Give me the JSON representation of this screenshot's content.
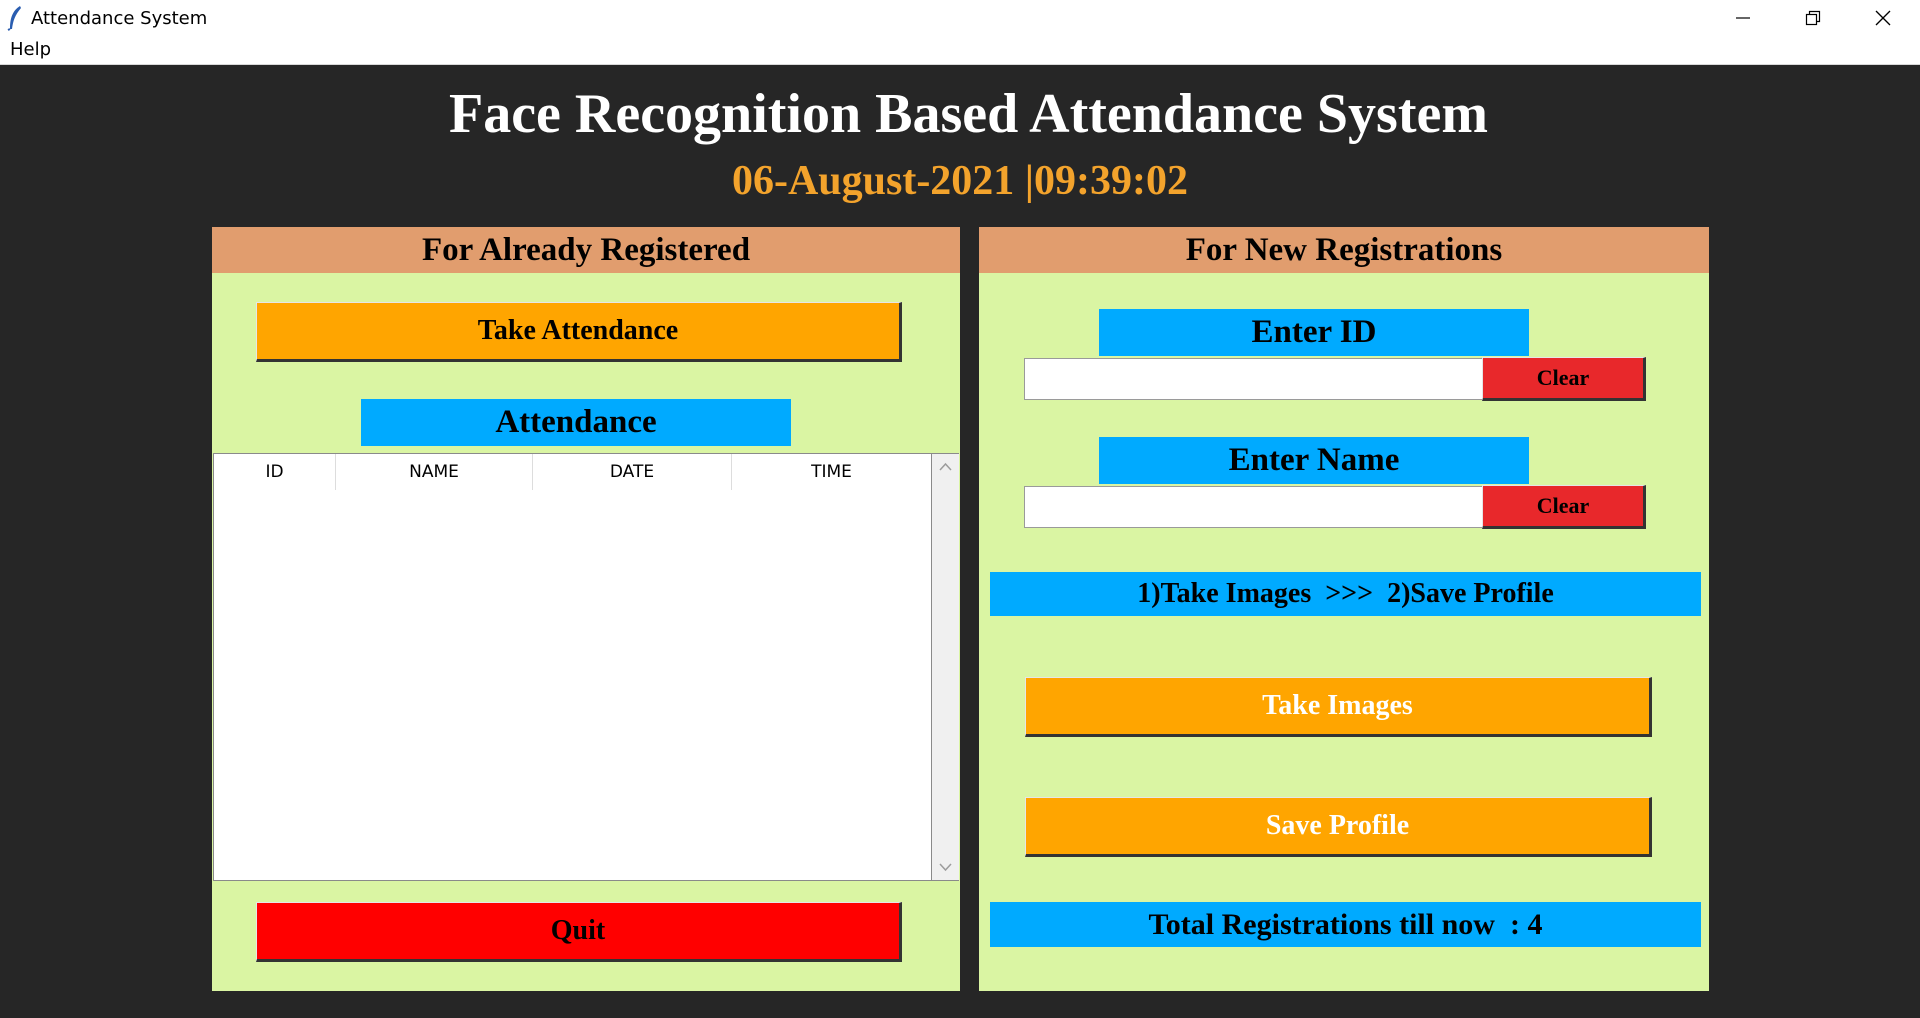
{
  "window": {
    "title": "Attendance System"
  },
  "menu": {
    "help": "Help"
  },
  "header": {
    "title": "Face Recognition Based Attendance System",
    "datetime": "06-August-2021  |09:39:02"
  },
  "left_panel": {
    "heading": "For Already Registered",
    "take_attendance_label": "Take Attendance",
    "attendance_label": "Attendance",
    "columns": [
      "ID",
      "NAME",
      "DATE",
      "TIME"
    ],
    "rows": [],
    "quit_label": "Quit"
  },
  "right_panel": {
    "heading": "For New Registrations",
    "enter_id_label": "Enter ID",
    "id_value": "",
    "clear_id_label": "Clear",
    "enter_name_label": "Enter Name",
    "name_value": "",
    "clear_name_label": "Clear",
    "steps_text": "1)Take Images  >>>  2)Save Profile",
    "take_images_label": "Take Images",
    "save_profile_label": "Save Profile",
    "total_registrations_text": "Total Registrations till now  : 4"
  },
  "colors": {
    "background": "#262626",
    "panel_bg": "#daf5a3",
    "panel_header": "#e19d6e",
    "label_blue": "#00aaff",
    "button_orange": "#ffa500",
    "button_red": "#ff0000",
    "clear_red": "#e8282b",
    "date_orange": "#f3a32c"
  },
  "icons": {
    "app": "feather-icon",
    "minimize": "minimize-icon",
    "maximize": "restore-icon",
    "close": "close-icon",
    "scroll_up": "chevron-up-icon",
    "scroll_down": "chevron-down-icon"
  }
}
